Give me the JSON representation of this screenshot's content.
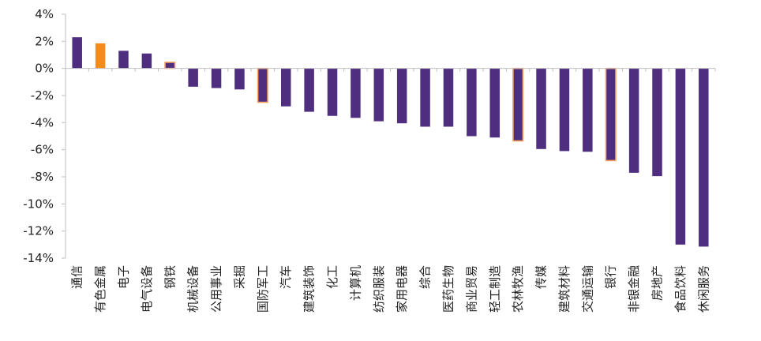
{
  "chart_data": {
    "type": "bar",
    "title": "",
    "xlabel": "",
    "ylabel": "",
    "ylim": [
      -14,
      4
    ],
    "yticks": [
      4,
      2,
      0,
      -2,
      -4,
      -6,
      -8,
      -10,
      -12,
      -14
    ],
    "ytick_labels": [
      "4%",
      "2%",
      "0%",
      "-2%",
      "-4%",
      "-6%",
      "-8%",
      "-10%",
      "-12%",
      "-14%"
    ],
    "grid": false,
    "legend": "none",
    "categories": [
      "通信",
      "有色金属",
      "电子",
      "电气设备",
      "钢铁",
      "机械设备",
      "公用事业",
      "采掘",
      "国防军工",
      "汽车",
      "建筑装饰",
      "化工",
      "计算机",
      "纺织服装",
      "家用电器",
      "综合",
      "医药生物",
      "商业贸易",
      "轻工制造",
      "农林牧渔",
      "传媒",
      "建筑材料",
      "交通运输",
      "银行",
      "非银金融",
      "房地产",
      "食品饮料",
      "休闲服务"
    ],
    "values": [
      2.3,
      1.85,
      1.3,
      1.1,
      0.45,
      -1.35,
      -1.45,
      -1.55,
      -2.5,
      -2.8,
      -3.2,
      -3.5,
      -3.65,
      -3.9,
      -4.05,
      -4.3,
      -4.3,
      -5.0,
      -5.1,
      -5.35,
      -5.95,
      -6.1,
      -6.15,
      -6.8,
      -7.7,
      -7.95,
      -13.0,
      -13.15
    ],
    "highlight_categories": [
      "有色金属",
      "钢铁",
      "国防军工",
      "农林牧渔",
      "银行"
    ],
    "colors": {
      "bar": "#4F2D7F",
      "highlight_fill": "#F28C1C",
      "highlight_outline": "#F4A460",
      "axis": "#BFBFBF",
      "text": "#222222"
    }
  }
}
